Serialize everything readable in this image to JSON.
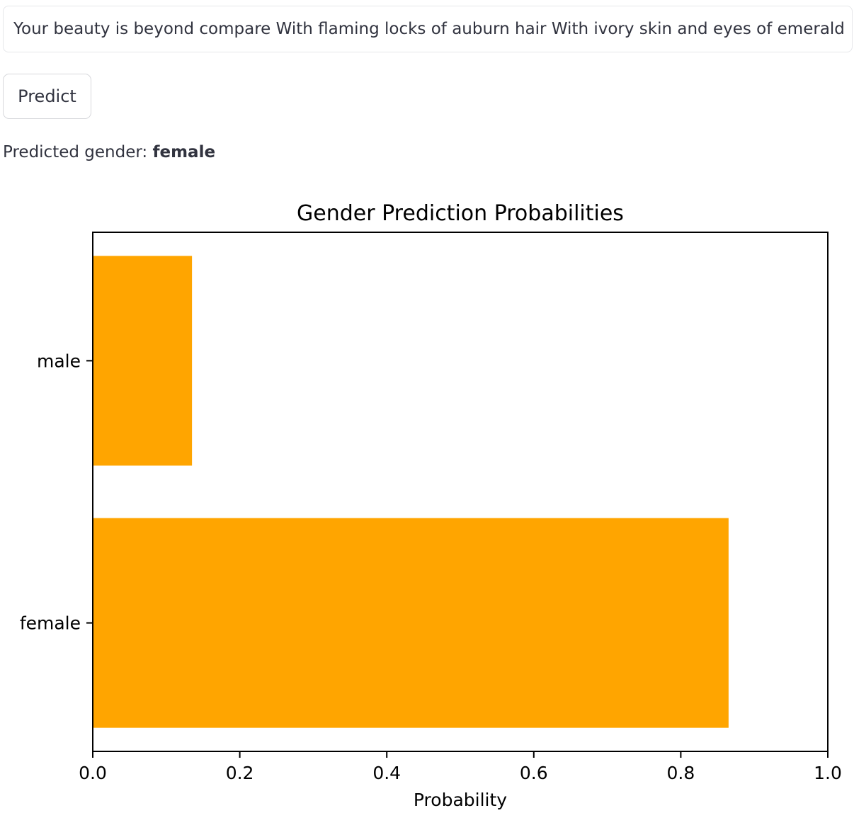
{
  "input": {
    "value": "Your beauty is beyond compare With flaming locks of auburn hair With ivory skin and eyes of emerald green"
  },
  "predict_button": {
    "label": "Predict"
  },
  "result": {
    "label": "Predicted gender:",
    "value": "female"
  },
  "chart_data": {
    "type": "bar",
    "orientation": "horizontal",
    "title": "Gender Prediction Probabilities",
    "xlabel": "Probability",
    "ylabel": "",
    "categories": [
      "female",
      "male"
    ],
    "values": [
      0.865,
      0.135
    ],
    "xlim": [
      0.0,
      1.0
    ],
    "xticks": [
      "0.0",
      "0.2",
      "0.4",
      "0.6",
      "0.8",
      "1.0"
    ],
    "bar_color": "#ffa500",
    "grid": false,
    "legend": "none"
  }
}
